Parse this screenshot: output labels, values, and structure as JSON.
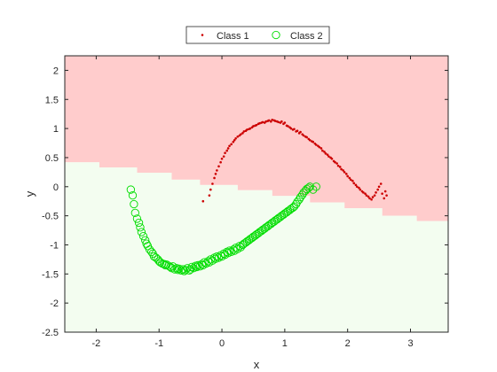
{
  "chart_data": {
    "type": "scatter",
    "title": "",
    "xlabel": "x",
    "ylabel": "y",
    "xlim": [
      -2.5,
      3.6
    ],
    "ylim": [
      -2.5,
      2.25
    ],
    "xticks": [
      -2,
      -1,
      0,
      1,
      2,
      3
    ],
    "xtick_labels": [
      "-2",
      "-1",
      "0",
      "1",
      "2",
      "3"
    ],
    "yticks": [
      -2.5,
      -2,
      -1.5,
      -1,
      -0.5,
      0,
      0.5,
      1,
      1.5,
      2
    ],
    "ytick_labels": [
      "-2.5",
      "-2",
      "-1.5",
      "-1",
      "-0.5",
      "0",
      "0.5",
      "1",
      "1.5",
      "2"
    ],
    "grid": false,
    "legend_position": "top-center",
    "legend": [
      {
        "name": "Class 1",
        "marker": "dot",
        "color": "#cc0000"
      },
      {
        "name": "Class 2",
        "marker": "circle",
        "color": "#00dd00"
      }
    ],
    "background_regions": {
      "class1_color": "#ffcccc",
      "class2_color": "#f3fdf0",
      "boundary": [
        {
          "x": -2.5,
          "y": 0.42
        },
        {
          "x": -1.95,
          "y": 0.42
        },
        {
          "x": -1.95,
          "y": 0.33
        },
        {
          "x": -1.35,
          "y": 0.33
        },
        {
          "x": -1.35,
          "y": 0.24
        },
        {
          "x": -0.8,
          "y": 0.24
        },
        {
          "x": -0.8,
          "y": 0.12
        },
        {
          "x": -0.35,
          "y": 0.12
        },
        {
          "x": -0.35,
          "y": 0.03
        },
        {
          "x": 0.25,
          "y": 0.03
        },
        {
          "x": 0.25,
          "y": -0.06
        },
        {
          "x": 0.8,
          "y": -0.06
        },
        {
          "x": 0.8,
          "y": -0.16
        },
        {
          "x": 1.4,
          "y": -0.16
        },
        {
          "x": 1.4,
          "y": -0.27
        },
        {
          "x": 1.95,
          "y": -0.27
        },
        {
          "x": 1.95,
          "y": -0.37
        },
        {
          "x": 2.55,
          "y": -0.37
        },
        {
          "x": 2.55,
          "y": -0.5
        },
        {
          "x": 3.1,
          "y": -0.5
        },
        {
          "x": 3.1,
          "y": -0.59
        },
        {
          "x": 3.6,
          "y": -0.59
        }
      ]
    },
    "series": [
      {
        "name": "Class 1",
        "marker": "dot",
        "color": "#cc0000",
        "x": [
          -0.3,
          -0.2,
          -0.18,
          -0.15,
          -0.12,
          -0.1,
          -0.08,
          -0.05,
          -0.02,
          0.0,
          0.03,
          0.05,
          0.08,
          0.1,
          0.12,
          0.15,
          0.18,
          0.2,
          0.22,
          0.25,
          0.28,
          0.3,
          0.33,
          0.35,
          0.38,
          0.4,
          0.43,
          0.45,
          0.48,
          0.5,
          0.53,
          0.55,
          0.58,
          0.6,
          0.63,
          0.65,
          0.68,
          0.7,
          0.73,
          0.75,
          0.78,
          0.8,
          0.83,
          0.85,
          0.88,
          0.9,
          0.93,
          0.95,
          0.98,
          1.0,
          1.03,
          1.05,
          1.08,
          1.1,
          1.13,
          1.15,
          1.18,
          1.2,
          1.23,
          1.25,
          1.28,
          1.3,
          1.33,
          1.35,
          1.38,
          1.4,
          1.43,
          1.45,
          1.48,
          1.5,
          1.53,
          1.55,
          1.58,
          1.6,
          1.63,
          1.65,
          1.68,
          1.7,
          1.73,
          1.75,
          1.78,
          1.8,
          1.83,
          1.85,
          1.88,
          1.9,
          1.93,
          1.95,
          1.98,
          2.0,
          2.03,
          2.05,
          2.08,
          2.1,
          2.13,
          2.15,
          2.18,
          2.2,
          2.23,
          2.25,
          2.28,
          2.3,
          2.33,
          2.35,
          2.38,
          2.4,
          2.43,
          2.45,
          2.48,
          2.5,
          2.53,
          2.55,
          2.58,
          2.6,
          2.62
        ],
        "y": [
          -0.25,
          -0.15,
          -0.05,
          0.05,
          0.15,
          0.22,
          0.28,
          0.35,
          0.42,
          0.48,
          0.52,
          0.58,
          0.62,
          0.66,
          0.7,
          0.73,
          0.77,
          0.8,
          0.83,
          0.86,
          0.88,
          0.9,
          0.92,
          0.95,
          0.96,
          0.98,
          0.99,
          1.0,
          1.02,
          1.04,
          1.05,
          1.06,
          1.08,
          1.09,
          1.1,
          1.11,
          1.1,
          1.12,
          1.13,
          1.14,
          1.12,
          1.15,
          1.14,
          1.13,
          1.12,
          1.11,
          1.1,
          1.12,
          1.08,
          1.1,
          1.05,
          1.04,
          1.02,
          1.0,
          0.98,
          0.99,
          0.95,
          0.96,
          0.92,
          0.94,
          0.9,
          0.88,
          0.86,
          0.85,
          0.82,
          0.8,
          0.78,
          0.77,
          0.74,
          0.72,
          0.7,
          0.68,
          0.66,
          0.62,
          0.6,
          0.57,
          0.55,
          0.52,
          0.5,
          0.48,
          0.44,
          0.42,
          0.4,
          0.36,
          0.34,
          0.3,
          0.28,
          0.25,
          0.22,
          0.18,
          0.15,
          0.12,
          0.1,
          0.06,
          0.03,
          0.0,
          -0.02,
          -0.05,
          -0.08,
          -0.1,
          -0.12,
          -0.15,
          -0.17,
          -0.2,
          -0.22,
          -0.18,
          -0.15,
          -0.1,
          -0.05,
          0.0,
          0.05,
          -0.12,
          -0.2,
          -0.08,
          -0.15
        ]
      },
      {
        "name": "Class 2",
        "marker": "circle",
        "color": "#00dd00",
        "x": [
          -1.45,
          -1.42,
          -1.4,
          -1.38,
          -1.35,
          -1.32,
          -1.3,
          -1.28,
          -1.25,
          -1.22,
          -1.2,
          -1.18,
          -1.15,
          -1.12,
          -1.1,
          -1.08,
          -1.05,
          -1.02,
          -1.0,
          -0.98,
          -0.95,
          -0.92,
          -0.9,
          -0.88,
          -0.85,
          -0.82,
          -0.8,
          -0.78,
          -0.75,
          -0.72,
          -0.7,
          -0.68,
          -0.65,
          -0.62,
          -0.6,
          -0.58,
          -0.55,
          -0.52,
          -0.5,
          -0.48,
          -0.45,
          -0.42,
          -0.4,
          -0.38,
          -0.35,
          -0.32,
          -0.3,
          -0.28,
          -0.25,
          -0.22,
          -0.2,
          -0.18,
          -0.15,
          -0.12,
          -0.1,
          -0.08,
          -0.05,
          -0.02,
          0.0,
          0.03,
          0.05,
          0.08,
          0.1,
          0.12,
          0.15,
          0.18,
          0.2,
          0.22,
          0.25,
          0.28,
          0.3,
          0.33,
          0.35,
          0.38,
          0.4,
          0.43,
          0.45,
          0.48,
          0.5,
          0.53,
          0.55,
          0.58,
          0.6,
          0.63,
          0.65,
          0.68,
          0.7,
          0.73,
          0.75,
          0.78,
          0.8,
          0.83,
          0.85,
          0.88,
          0.9,
          0.93,
          0.95,
          0.98,
          1.0,
          1.03,
          1.05,
          1.08,
          1.1,
          1.13,
          1.15,
          1.18,
          1.2,
          1.23,
          1.25,
          1.28,
          1.3,
          1.33,
          1.35,
          1.38,
          1.4,
          1.45,
          1.5
        ],
        "y": [
          -0.05,
          -0.15,
          -0.3,
          -0.45,
          -0.55,
          -0.62,
          -0.7,
          -0.78,
          -0.85,
          -0.92,
          -0.98,
          -1.02,
          -1.08,
          -1.12,
          -1.15,
          -1.2,
          -1.22,
          -1.25,
          -1.28,
          -1.3,
          -1.32,
          -1.33,
          -1.35,
          -1.34,
          -1.36,
          -1.38,
          -1.4,
          -1.37,
          -1.42,
          -1.4,
          -1.43,
          -1.41,
          -1.44,
          -1.42,
          -1.45,
          -1.43,
          -1.4,
          -1.44,
          -1.42,
          -1.38,
          -1.4,
          -1.36,
          -1.38,
          -1.35,
          -1.37,
          -1.33,
          -1.35,
          -1.3,
          -1.32,
          -1.28,
          -1.3,
          -1.25,
          -1.27,
          -1.22,
          -1.24,
          -1.2,
          -1.22,
          -1.18,
          -1.2,
          -1.15,
          -1.17,
          -1.12,
          -1.14,
          -1.1,
          -1.12,
          -1.08,
          -1.1,
          -1.05,
          -1.07,
          -1.02,
          -1.04,
          -1.0,
          -0.98,
          -0.96,
          -0.94,
          -0.92,
          -0.9,
          -0.88,
          -0.86,
          -0.84,
          -0.82,
          -0.8,
          -0.78,
          -0.76,
          -0.74,
          -0.72,
          -0.7,
          -0.68,
          -0.66,
          -0.64,
          -0.62,
          -0.6,
          -0.58,
          -0.56,
          -0.54,
          -0.52,
          -0.5,
          -0.48,
          -0.46,
          -0.44,
          -0.42,
          -0.4,
          -0.38,
          -0.36,
          -0.34,
          -0.3,
          -0.26,
          -0.22,
          -0.18,
          -0.14,
          -0.1,
          -0.07,
          -0.04,
          -0.02,
          0.0,
          -0.05,
          0.0
        ]
      }
    ]
  }
}
